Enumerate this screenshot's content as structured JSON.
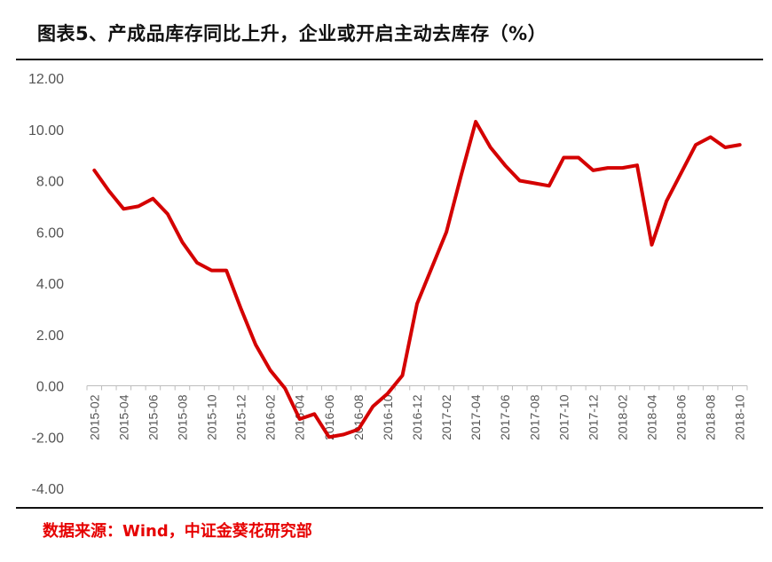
{
  "header": {
    "title": "图表5、产成品库存同比上升，企业或开启主动去库存（%）"
  },
  "footer": {
    "source": "数据来源：Wind，中证金葵花研究部"
  },
  "colors": {
    "line": "#d40000",
    "axis": "#bdbdbd",
    "text": "#555555"
  },
  "chart_data": {
    "type": "line",
    "title": "图表5、产成品库存同比上升，企业或开启主动去库存（%）",
    "xlabel": "",
    "ylabel": "",
    "ylim": [
      -4,
      12
    ],
    "y_ticks": [
      "12.00",
      "10.00",
      "8.00",
      "6.00",
      "4.00",
      "2.00",
      "0.00",
      "-2.00",
      "-4.00"
    ],
    "grid": false,
    "legend": "none",
    "x": [
      "2015-02",
      "2015-03",
      "2015-04",
      "2015-05",
      "2015-06",
      "2015-07",
      "2015-08",
      "2015-09",
      "2015-10",
      "2015-11",
      "2015-12",
      "2016-01",
      "2016-02",
      "2016-03",
      "2016-04",
      "2016-05",
      "2016-06",
      "2016-07",
      "2016-08",
      "2016-09",
      "2016-10",
      "2016-11",
      "2016-12",
      "2017-01",
      "2017-02",
      "2017-03",
      "2017-04",
      "2017-05",
      "2017-06",
      "2017-07",
      "2017-08",
      "2017-09",
      "2017-10",
      "2017-11",
      "2017-12",
      "2018-01",
      "2018-02",
      "2018-03",
      "2018-04",
      "2018-05",
      "2018-06",
      "2018-07",
      "2018-08",
      "2018-09",
      "2018-10"
    ],
    "x_tick_labels": [
      "2015-02",
      "2015-04",
      "2015-06",
      "2015-08",
      "2015-10",
      "2015-12",
      "2016-02",
      "2016-04",
      "2016-06",
      "2016-08",
      "2016-10",
      "2016-12",
      "2017-02",
      "2017-04",
      "2017-06",
      "2017-08",
      "2017-10",
      "2017-12",
      "2018-02",
      "2018-04",
      "2018-06",
      "2018-08",
      "2018-10"
    ],
    "series": [
      {
        "values": [
          8.4,
          7.6,
          6.9,
          7.0,
          7.3,
          6.7,
          5.6,
          4.8,
          4.5,
          4.5,
          3.0,
          1.6,
          0.6,
          -0.1,
          -1.3,
          -1.1,
          -2.0,
          -1.9,
          -1.7,
          -0.8,
          -0.3,
          0.4,
          3.2,
          4.6,
          6.0,
          8.2,
          10.3,
          9.3,
          8.6,
          8.0,
          7.9,
          7.8,
          8.9,
          8.9,
          8.4,
          8.5,
          8.5,
          8.6,
          5.5,
          7.2,
          8.3,
          9.4,
          9.7,
          9.3,
          9.4
        ]
      }
    ]
  }
}
